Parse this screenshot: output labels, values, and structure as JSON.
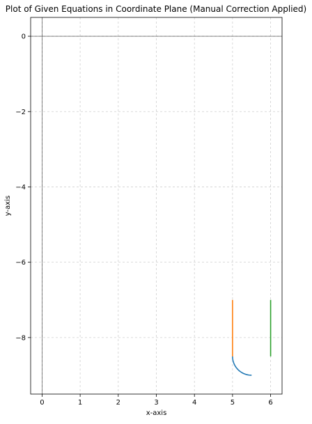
{
  "chart_data": {
    "type": "line",
    "title": "Plot of Given Equations in Coordinate Plane (Manual Correction Applied)",
    "xlabel": "x-axis",
    "ylabel": "y-axis",
    "xlim": [
      -0.3,
      6.3
    ],
    "ylim": [
      -9.5,
      0.5
    ],
    "xticks": [
      0,
      1,
      2,
      3,
      4,
      5,
      6
    ],
    "yticks": [
      0,
      -2,
      -4,
      -6,
      -8
    ],
    "xtick_labels": [
      "0",
      "1",
      "2",
      "3",
      "4",
      "5",
      "6"
    ],
    "ytick_labels": [
      "0",
      "−2",
      "−4",
      "−6",
      "−8"
    ],
    "grid": true,
    "series": [
      {
        "color": "#1f77b4",
        "kind": "arc",
        "center": [
          5.5,
          -8.5
        ],
        "radius": 0.5,
        "angle_start_deg": 180,
        "angle_end_deg": 270
      },
      {
        "color": "#ff7f0e",
        "x": [
          5,
          5
        ],
        "y": [
          -7,
          -8.5
        ]
      },
      {
        "color": "#2ca02c",
        "x": [
          6,
          6
        ],
        "y": [
          -7,
          -8.5
        ]
      }
    ]
  }
}
